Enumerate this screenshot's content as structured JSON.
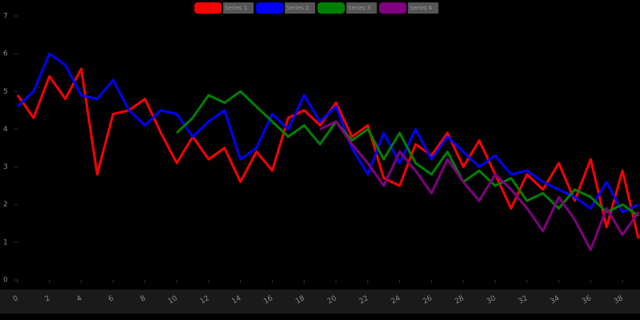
{
  "chart_data": {
    "type": "line",
    "x": [
      0,
      1,
      2,
      3,
      4,
      5,
      6,
      7,
      8,
      9,
      10,
      11,
      12,
      13,
      14,
      15,
      16,
      17,
      18,
      19,
      20,
      21,
      22,
      23,
      24,
      25,
      26,
      27,
      28,
      29,
      30,
      31,
      32,
      33,
      34,
      35,
      36,
      37,
      38,
      39
    ],
    "xlim": [
      0,
      39
    ],
    "xticks": [
      0,
      2,
      4,
      6,
      8,
      10,
      12,
      14,
      16,
      18,
      20,
      22,
      24,
      26,
      28,
      30,
      32,
      34,
      36,
      38
    ],
    "ylim": [
      0,
      7
    ],
    "yticks": [
      0,
      1,
      2,
      3,
      4,
      5,
      6,
      7
    ],
    "series": [
      {
        "name": "Series 1",
        "color": "#ff0000",
        "values": [
          4.9,
          4.3,
          5.4,
          4.8,
          5.6,
          2.8,
          4.4,
          4.5,
          4.8,
          3.9,
          3.1,
          3.8,
          3.2,
          3.5,
          2.6,
          3.4,
          2.9,
          4.3,
          4.5,
          4.1,
          4.7,
          3.8,
          4.1,
          2.7,
          2.5,
          3.6,
          3.3,
          3.9,
          3.0,
          3.7,
          2.8,
          1.9,
          2.8,
          2.4,
          3.1,
          2.1,
          3.2,
          1.4,
          2.9,
          1.1
        ]
      },
      {
        "name": "Series 2",
        "color": "#0000ff",
        "values": [
          4.6,
          5.0,
          6.0,
          5.7,
          4.9,
          4.8,
          5.3,
          4.5,
          4.1,
          4.5,
          4.4,
          3.8,
          4.2,
          4.5,
          3.2,
          3.5,
          4.4,
          4.0,
          4.9,
          4.2,
          4.6,
          3.5,
          2.8,
          3.9,
          3.1,
          4.0,
          3.2,
          3.8,
          3.4,
          3.0,
          3.3,
          2.8,
          2.9,
          2.6,
          2.4,
          2.2,
          1.9,
          2.6,
          1.8,
          2.0
        ]
      },
      {
        "name": "Series 3",
        "color": "#008000",
        "values": [
          null,
          null,
          null,
          null,
          null,
          null,
          null,
          null,
          null,
          null,
          3.9,
          4.3,
          4.9,
          4.7,
          5.0,
          4.6,
          4.2,
          3.8,
          4.1,
          3.6,
          4.2,
          3.7,
          4.0,
          3.2,
          3.9,
          3.1,
          2.8,
          3.4,
          2.6,
          2.9,
          2.5,
          2.7,
          2.1,
          2.3,
          1.9,
          2.4,
          2.2,
          1.8,
          2.0,
          1.7
        ]
      },
      {
        "name": "Series 4",
        "color": "#800080",
        "values": [
          null,
          null,
          null,
          null,
          null,
          null,
          null,
          null,
          null,
          null,
          null,
          null,
          null,
          null,
          null,
          null,
          null,
          null,
          null,
          4.0,
          4.2,
          3.6,
          3.1,
          2.5,
          3.4,
          2.9,
          2.3,
          3.2,
          2.6,
          2.1,
          2.8,
          2.4,
          1.9,
          1.3,
          2.2,
          1.6,
          0.8,
          1.9,
          1.2,
          1.8
        ]
      }
    ],
    "legend": "top"
  }
}
